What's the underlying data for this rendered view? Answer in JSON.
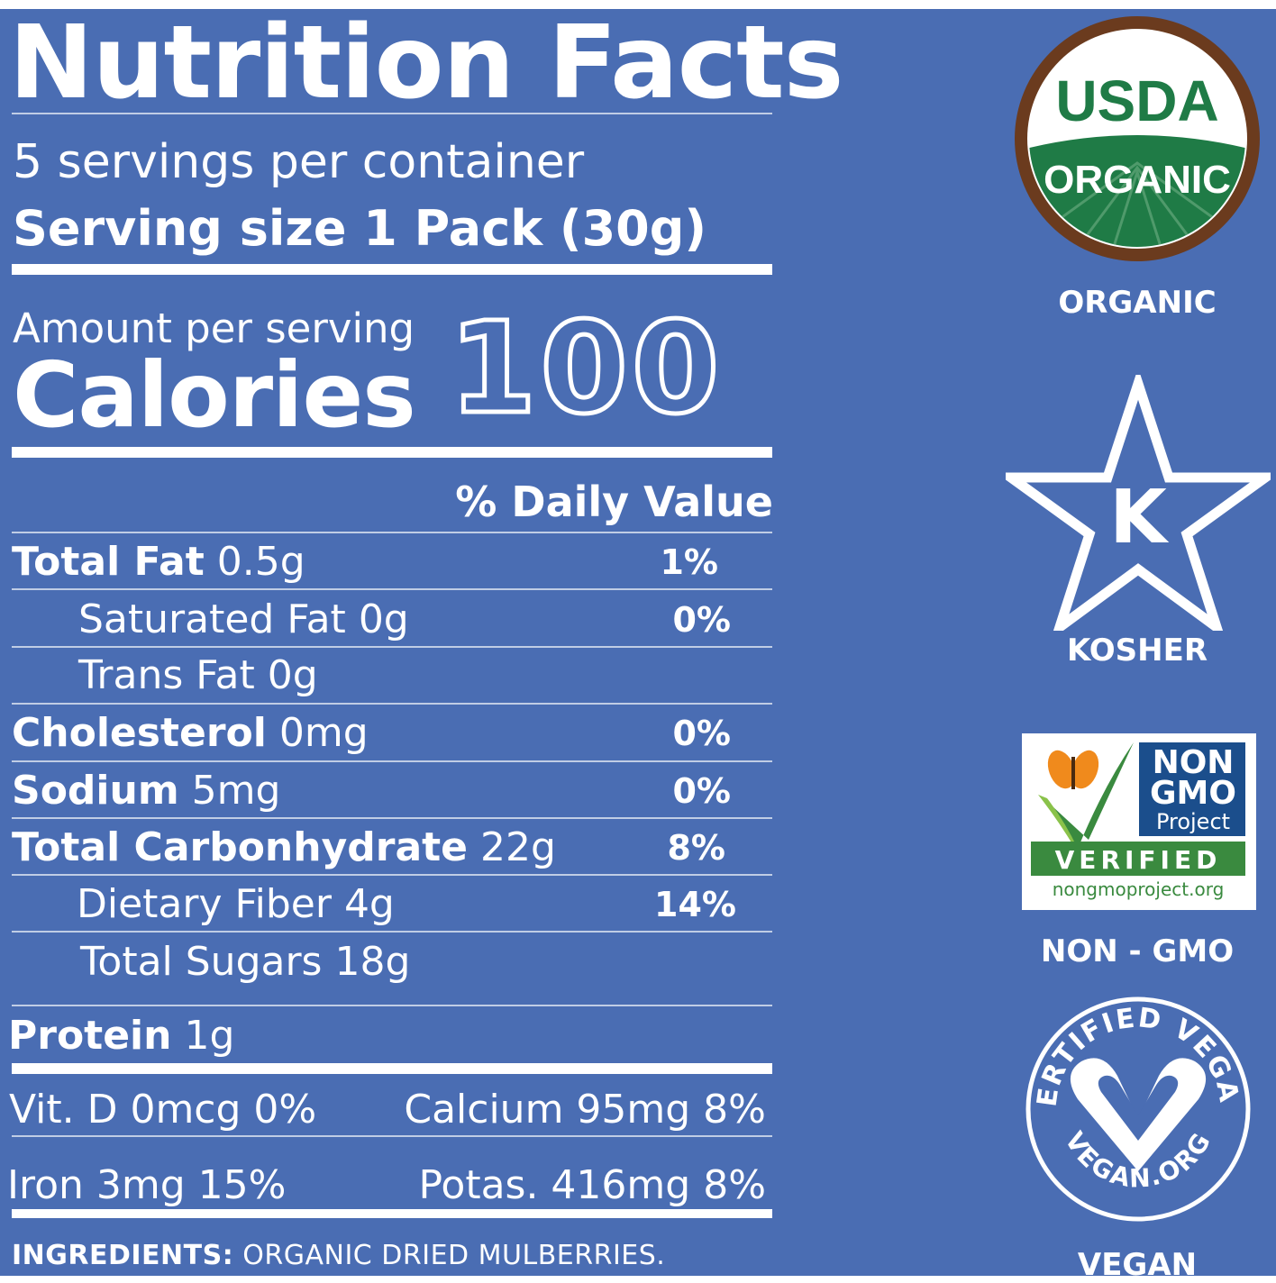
{
  "panel": {
    "title": "Nutrition Facts",
    "servings_per_container": "5 servings per container",
    "serving_size": "Serving size 1 Pack (30g)",
    "amount_per_serving": "Amount per serving",
    "calories_label": "Calories",
    "calories_value": "100",
    "daily_value_header": "% Daily Value"
  },
  "nutrients": [
    {
      "name": "Total Fat",
      "amount": "0.5g",
      "dv": "1%",
      "bold": true
    },
    {
      "name": "Saturated Fat",
      "amount": "0g",
      "dv": "0%",
      "bold": false
    },
    {
      "name": "Trans Fat",
      "amount": "0g",
      "dv": "",
      "bold": false
    },
    {
      "name": "Cholesterol",
      "amount": "0mg",
      "dv": "0%",
      "bold": true
    },
    {
      "name": "Sodium",
      "amount": "5mg",
      "dv": "0%",
      "bold": true
    },
    {
      "name": "Total Carbonhydrate",
      "amount": "22g",
      "dv": "8%",
      "bold": true
    },
    {
      "name": "Dietary Fiber",
      "amount": "4g",
      "dv": "14%",
      "bold": false
    },
    {
      "name": "Total Sugars",
      "amount": "18g",
      "dv": "",
      "bold": false
    }
  ],
  "protein": {
    "name": "Protein",
    "amount": "1g"
  },
  "micros": {
    "vit_d": "Vit. D 0mcg 0%",
    "calcium": "Calcium 95mg 8%",
    "iron": "Iron 3mg 15%",
    "potassium": "Potas. 416mg 8%"
  },
  "ingredients": {
    "label": "INGREDIENTS:",
    "text": "ORGANIC DRIED MULBERRIES."
  },
  "badges": {
    "usda": {
      "top": "USDA",
      "bottom": "ORGANIC",
      "caption": "ORGANIC"
    },
    "kosher": {
      "letter": "K",
      "caption": "KOSHER"
    },
    "nongmo": {
      "line1": "NON",
      "line2": "GMO",
      "line3": "Project",
      "verified": "VERIFIED",
      "url": "nongmoproject.org",
      "caption": "NON - GMO"
    },
    "vegan": {
      "arc_top": "CERTIFIED VEGAN",
      "arc_bottom": "VEGAN.ORG",
      "caption": "VEGAN"
    }
  },
  "colors": {
    "background": "#4a6db3",
    "usda_green": "#1f7b46",
    "usda_brown": "#6b3b1e",
    "nongmo_green": "#3a8a3f",
    "nongmo_blue": "#1b4e8c",
    "butterfly_orange": "#f08a1c"
  }
}
